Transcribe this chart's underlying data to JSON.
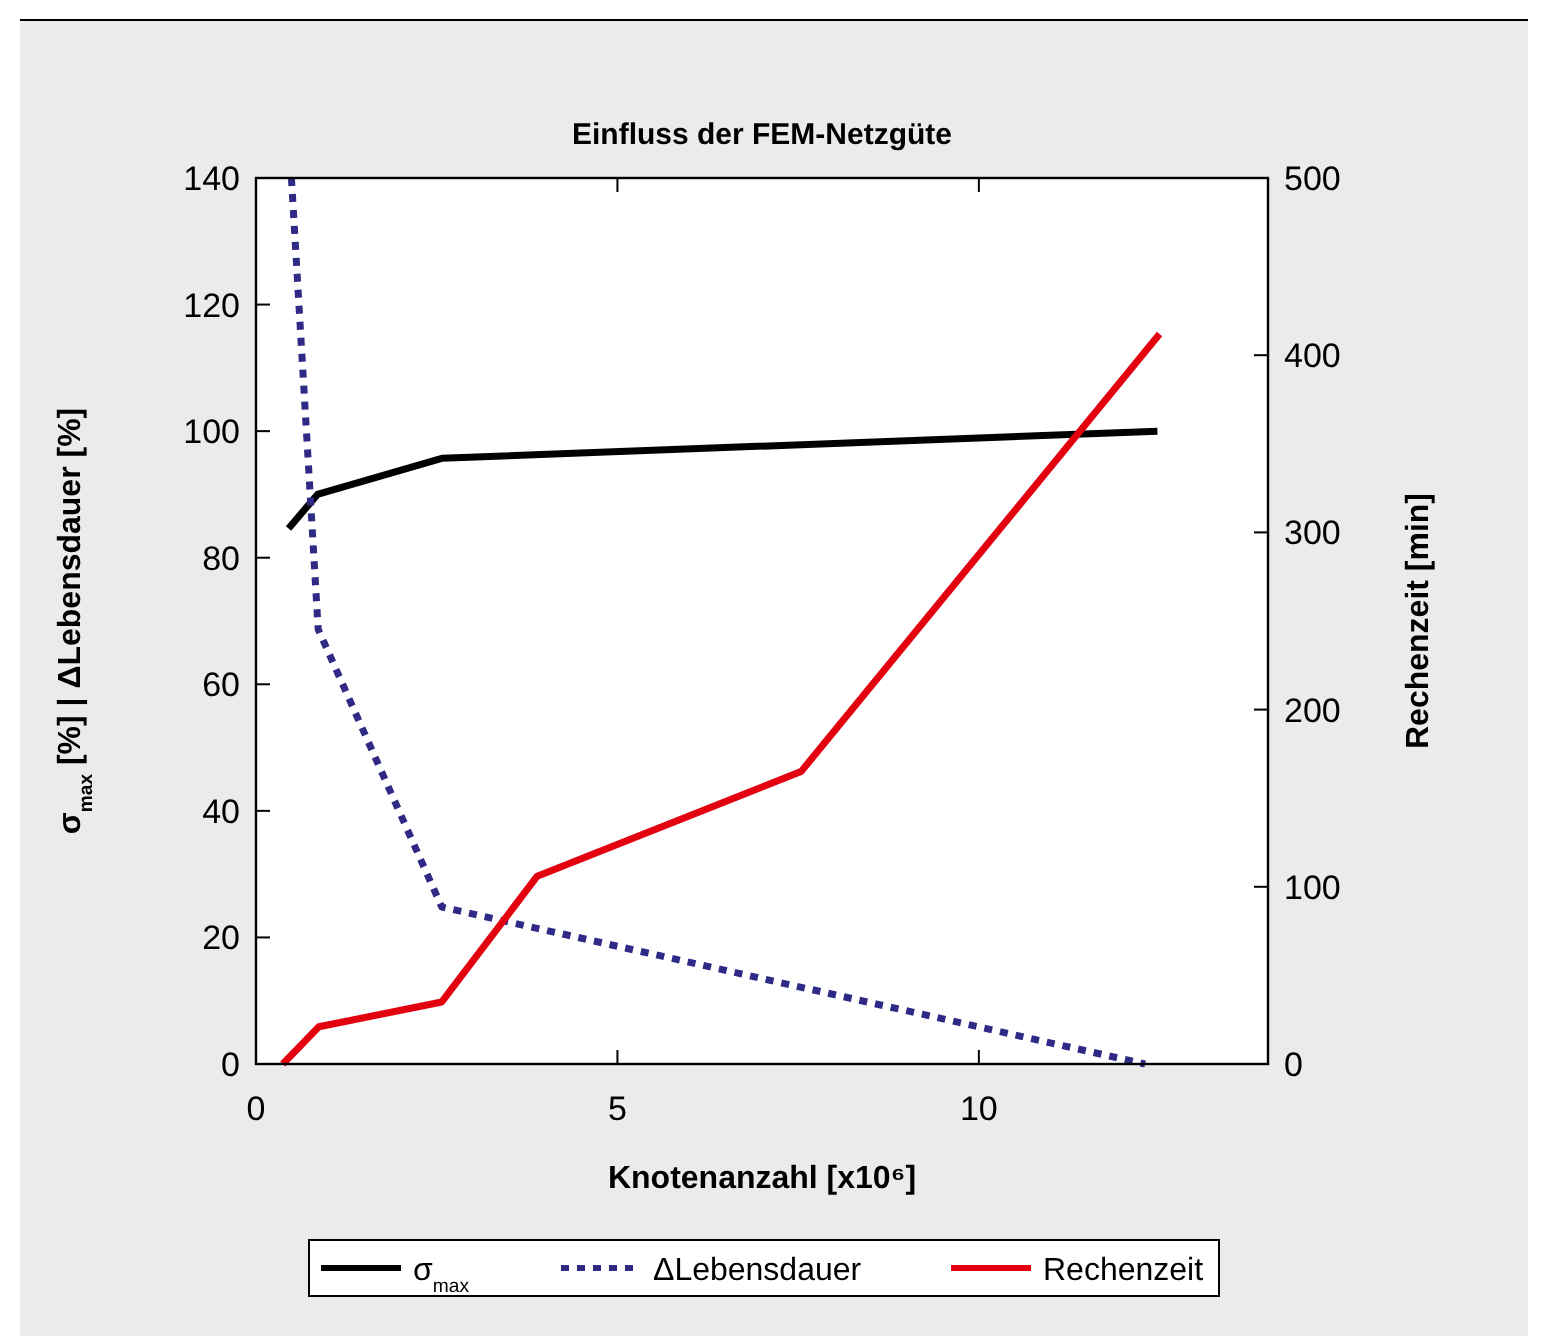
{
  "chart_data": {
    "type": "line",
    "title": "Einfluss der FEM-Netzgüte",
    "xlabel": "Knotenanzahl [x10⁶]",
    "ylabel": "σ$_{max}$ [%] | ΔLebensdauer [%]",
    "y2label": "Rechenzeit [min]",
    "xlim": [
      0,
      14
    ],
    "xticks": [
      0,
      5,
      10
    ],
    "ylim": [
      0,
      140
    ],
    "yticks": [
      0,
      20,
      40,
      60,
      80,
      100,
      120,
      140
    ],
    "y2lim": [
      0,
      500
    ],
    "y2ticks": [
      0,
      100,
      200,
      300,
      400,
      500
    ],
    "grid": false,
    "legend": "bottom",
    "series": [
      {
        "name": "σ$_{max}$",
        "color": "#000000",
        "line_style": "solid",
        "x": [
          0.45,
          0.85,
          2.57,
          12.47
        ],
        "values": [
          84.6,
          90,
          95.7,
          100
        ]
      },
      {
        "name": "ΔLebensdauer",
        "color": "#2e2a85",
        "line_style": "dotted",
        "x": [
          0.49,
          0.86,
          2.57,
          12.3
        ],
        "values": [
          140,
          68.7,
          24.8,
          0
        ]
      },
      {
        "name": "Rechenzeit",
        "color": "#e3000f",
        "line_style": "solid",
        "axis": "y2",
        "x": [
          0.37,
          0.87,
          2.57,
          3.89,
          7.54,
          12.5
        ],
        "values": [
          0,
          21,
          35,
          106,
          165,
          412
        ]
      }
    ]
  }
}
